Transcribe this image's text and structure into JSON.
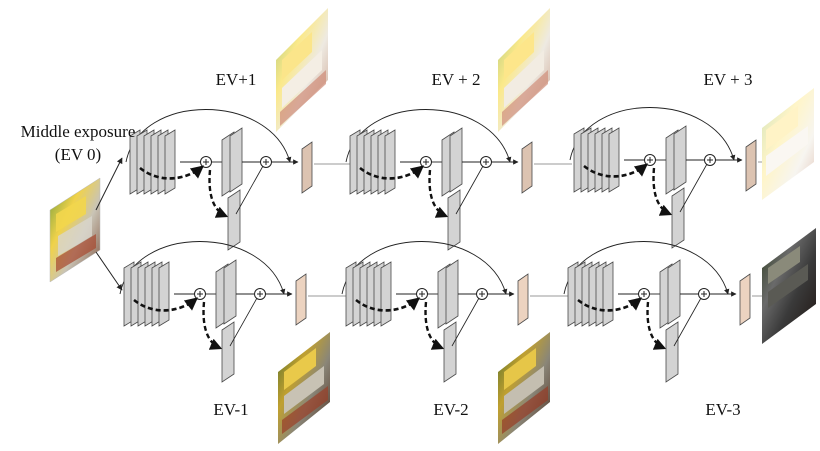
{
  "input": {
    "label_line1": "Middle exposure",
    "label_line2": "(EV 0)",
    "thumbnail": "outdoor-cafe-photo"
  },
  "upper_branch": {
    "outputs": [
      {
        "label": "EV+1",
        "thumbnail": "outdoor-cafe-photo-brighter"
      },
      {
        "label": "EV + 2",
        "thumbnail": "outdoor-cafe-photo-brighter"
      },
      {
        "label": "EV + 3",
        "thumbnail": "outdoor-cafe-photo-brightest"
      }
    ]
  },
  "lower_branch": {
    "outputs": [
      {
        "label": "EV-1",
        "thumbnail": "outdoor-cafe-photo-darker"
      },
      {
        "label": "EV-2",
        "thumbnail": "outdoor-cafe-photo-darker"
      },
      {
        "label": "EV-3",
        "thumbnail": "outdoor-cafe-photo-darkest"
      }
    ]
  },
  "colors": {
    "layer_fill": "#d3d3d3",
    "layer_stroke": "#4a4a4a",
    "output_block_fill": "#dcc3b1",
    "lower_output_block_fill": "#ecd3c0",
    "line": "#222222"
  },
  "icons": {
    "sum_node": "circled-plus-icon",
    "skip_arrow": "dashed-arrow-icon"
  }
}
